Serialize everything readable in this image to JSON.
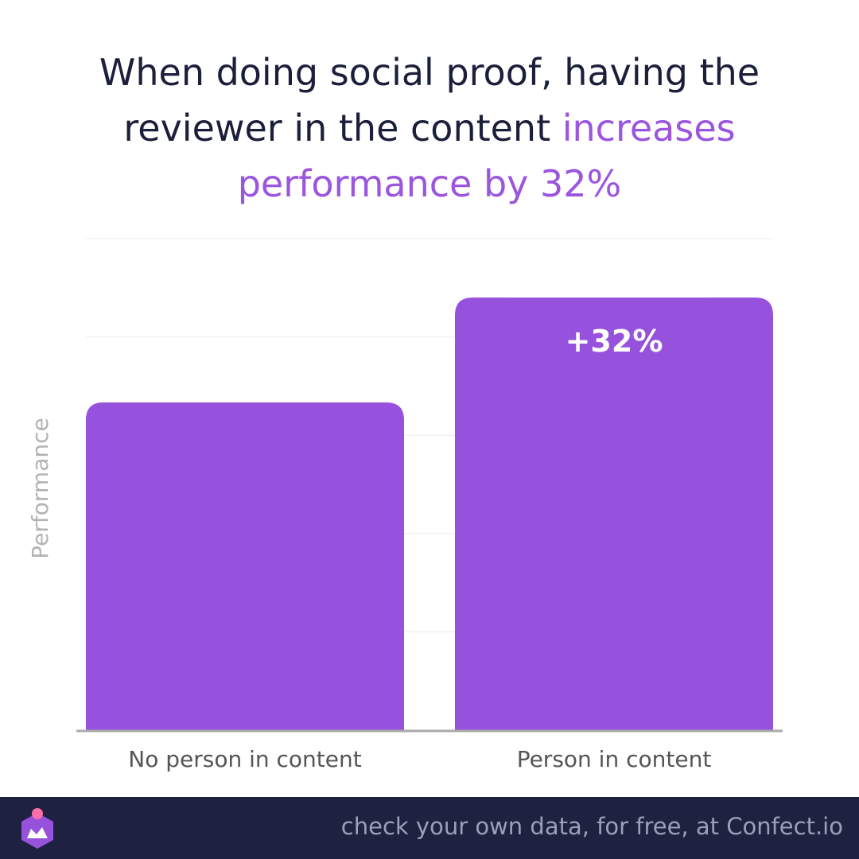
{
  "title": {
    "part1": "When doing social proof, having the reviewer in the content ",
    "highlight": "increases performance by 32%"
  },
  "colors": {
    "bar": "#9652dc",
    "highlight": "#9b55de",
    "title": "#1b1f3b",
    "footer_bg": "#1e2240",
    "footer_text": "#9aa0b8",
    "axis": "#a9a9a9",
    "grid": "#ececec"
  },
  "chart_data": {
    "type": "bar",
    "categories": [
      "No person in content",
      "Person in content"
    ],
    "values": [
      100,
      132
    ],
    "data_labels": [
      "",
      "+32%"
    ],
    "ylabel": "Performance",
    "xlabel": "",
    "ylim": [
      0,
      150
    ],
    "grid": true,
    "y_tick_labels_shown": false
  },
  "footer": {
    "text": "check your own data, for free, at Confect.io",
    "logo_icon": "confect-logo-icon"
  }
}
